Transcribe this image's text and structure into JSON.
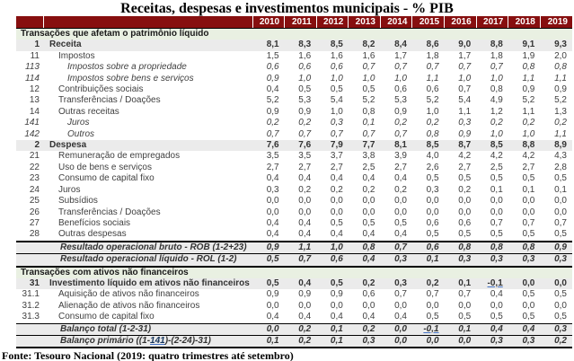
{
  "title": "Receitas, despesas e investimentos municipais - % PIB",
  "source_note": "Fonte: Tesouro Nacional (2019: quatro trimestres até setembro)",
  "colors": {
    "header_bg": "#870F0F",
    "header_text": "#FFFFFF",
    "section_bg": "#E9F0E2",
    "highlight_bg": "#EBEBEB",
    "link_blue": "#4472C4",
    "body_text": "#404040"
  },
  "chart_data": {
    "type": "table",
    "title": "Receitas, despesas e investimentos municipais - % PIB",
    "unit": "% PIB",
    "columns": [
      "2010",
      "2011",
      "2012",
      "2013",
      "2014",
      "2015",
      "2016",
      "2017",
      "2018",
      "2019"
    ],
    "rows": [
      {
        "type": "section",
        "label": "Transações que afetam o patrimônio líquido"
      },
      {
        "type": "data",
        "code": "1",
        "label": "Receita",
        "level": 1,
        "highlight": true,
        "values": [
          "8,1",
          "8,3",
          "8,5",
          "8,2",
          "8,4",
          "8,6",
          "9,0",
          "8,8",
          "9,1",
          "9,3"
        ]
      },
      {
        "type": "data",
        "code": "11",
        "label": "Impostos",
        "level": 2,
        "values": [
          "1,5",
          "1,6",
          "1,6",
          "1,6",
          "1,7",
          "1,8",
          "1,7",
          "1,8",
          "1,9",
          "2,0"
        ]
      },
      {
        "type": "data",
        "code": "113",
        "label": "Impostos sobre a propriedade",
        "level": 3,
        "italic": true,
        "values": [
          "0,6",
          "0,6",
          "0,6",
          "0,7",
          "0,7",
          "0,7",
          "0,7",
          "0,7",
          "0,8",
          "0,8"
        ]
      },
      {
        "type": "data",
        "code": "114",
        "label": "Impostos sobre bens e serviços",
        "level": 3,
        "italic": true,
        "values": [
          "0,9",
          "1,0",
          "1,0",
          "1,0",
          "1,0",
          "1,1",
          "1,0",
          "1,0",
          "1,1",
          "1,1"
        ]
      },
      {
        "type": "data",
        "code": "12",
        "label": "Contribuições sociais",
        "level": 2,
        "values": [
          "0,4",
          "0,5",
          "0,5",
          "0,5",
          "0,6",
          "0,6",
          "0,7",
          "0,8",
          "0,9",
          "0,9"
        ]
      },
      {
        "type": "data",
        "code": "13",
        "label": "Transferências / Doações",
        "level": 2,
        "values": [
          "5,2",
          "5,3",
          "5,4",
          "5,2",
          "5,3",
          "5,2",
          "5,4",
          "4,9",
          "5,2",
          "5,2"
        ]
      },
      {
        "type": "data",
        "code": "14",
        "label": "Outras receitas",
        "level": 2,
        "values": [
          "0,9",
          "0,9",
          "1,0",
          "0,8",
          "0,9",
          "1,0",
          "1,1",
          "1,2",
          "1,1",
          "1,3"
        ]
      },
      {
        "type": "data",
        "code": "141",
        "label": "Juros",
        "level": 3,
        "italic": true,
        "values": [
          "0,2",
          "0,2",
          "0,3",
          "0,1",
          "0,2",
          "0,2",
          "0,3",
          "0,2",
          "0,2",
          "0,2"
        ]
      },
      {
        "type": "data",
        "code": "142",
        "label": "Outros",
        "level": 3,
        "italic": true,
        "values": [
          "0,7",
          "0,7",
          "0,7",
          "0,7",
          "0,7",
          "0,8",
          "0,9",
          "1,0",
          "1,0",
          "1,1"
        ]
      },
      {
        "type": "data",
        "code": "2",
        "label": "Despesa",
        "level": 1,
        "highlight": true,
        "values": [
          "7,6",
          "7,6",
          "7,9",
          "7,7",
          "8,1",
          "8,5",
          "8,7",
          "8,5",
          "8,8",
          "8,9"
        ]
      },
      {
        "type": "data",
        "code": "21",
        "label": "Remuneração de empregados",
        "level": 2,
        "values": [
          "3,5",
          "3,5",
          "3,7",
          "3,8",
          "3,9",
          "4,0",
          "4,2",
          "4,2",
          "4,2",
          "4,3"
        ]
      },
      {
        "type": "data",
        "code": "22",
        "label": "Uso de bens e serviços",
        "level": 2,
        "values": [
          "2,7",
          "2,7",
          "2,7",
          "2,5",
          "2,7",
          "2,6",
          "2,7",
          "2,5",
          "2,7",
          "2,8"
        ]
      },
      {
        "type": "data",
        "code": "23",
        "label": "Consumo de capital fixo",
        "level": 2,
        "values": [
          "0,4",
          "0,4",
          "0,4",
          "0,4",
          "0,4",
          "0,5",
          "0,5",
          "0,5",
          "0,5",
          "0,5"
        ]
      },
      {
        "type": "data",
        "code": "24",
        "label": "Juros",
        "level": 2,
        "values": [
          "0,3",
          "0,2",
          "0,2",
          "0,2",
          "0,2",
          "0,3",
          "0,2",
          "0,1",
          "0,1",
          "0,1"
        ]
      },
      {
        "type": "data",
        "code": "25",
        "label": "Subsídios",
        "level": 2,
        "values": [
          "0,0",
          "0,0",
          "0,0",
          "0,0",
          "0,0",
          "0,0",
          "0,0",
          "0,0",
          "0,0",
          "0,0"
        ]
      },
      {
        "type": "data",
        "code": "26",
        "label": "Transferências / Doações",
        "level": 2,
        "values": [
          "0,0",
          "0,0",
          "0,0",
          "0,0",
          "0,0",
          "0,0",
          "0,0",
          "0,0",
          "0,0",
          "0,0"
        ]
      },
      {
        "type": "data",
        "code": "27",
        "label": "Benefícios sociais",
        "level": 2,
        "values": [
          "0,4",
          "0,4",
          "0,5",
          "0,5",
          "0,5",
          "0,6",
          "0,6",
          "0,7",
          "0,7",
          "0,7"
        ]
      },
      {
        "type": "data",
        "code": "28",
        "label": "Outras despesas",
        "level": 2,
        "values": [
          "0,4",
          "0,4",
          "0,4",
          "0,4",
          "0,4",
          "0,5",
          "0,5",
          "0,5",
          "0,5",
          "0,5"
        ]
      },
      {
        "type": "result",
        "code": "",
        "label": "Resultado operacional bruto - ROB (1-2+23)",
        "highlight": true,
        "border_top": "thick",
        "border_bottom": "thin",
        "values": [
          "0,9",
          "1,1",
          "1,0",
          "0,8",
          "0,7",
          "0,6",
          "0,8",
          "0,8",
          "0,8",
          "0,9"
        ]
      },
      {
        "type": "result",
        "code": "",
        "label": "Resultado operacional líquido - ROL (1-2)",
        "highlight": true,
        "border_bottom": "thick",
        "values": [
          "0,5",
          "0,7",
          "0,6",
          "0,4",
          "0,3",
          "0,1",
          "0,3",
          "0,3",
          "0,3",
          "0,3"
        ]
      },
      {
        "type": "section",
        "label": "Transações com ativos não financeiros"
      },
      {
        "type": "data",
        "code": "31",
        "label": "Investimento líquido em ativos não financeiros",
        "level": 1,
        "highlight": true,
        "values": [
          "0,5",
          "0,4",
          "0,5",
          "0,2",
          "0,3",
          "0,2",
          "0,1",
          "-0,1",
          "0,0",
          "0,0"
        ]
      },
      {
        "type": "data",
        "code": "31.1",
        "label": "Aquisição de ativos não financeiros",
        "level": 2,
        "values": [
          "0,9",
          "0,9",
          "0,9",
          "0,6",
          "0,7",
          "0,7",
          "0,7",
          "0,4",
          "0,5",
          "0,5"
        ]
      },
      {
        "type": "data",
        "code": "31.2",
        "label": "Alienação de ativos não financeiros",
        "level": 2,
        "values": [
          "0,0",
          "0,0",
          "0,0",
          "0,0",
          "0,0",
          "0,0",
          "0,0",
          "0,0",
          "0,0",
          "0,0"
        ]
      },
      {
        "type": "data",
        "code": "31.3",
        "label": "Consumo de capital fixo",
        "level": 2,
        "values": [
          "0,4",
          "0,4",
          "0,4",
          "0,4",
          "0,4",
          "0,5",
          "0,5",
          "0,5",
          "0,5",
          "0,5"
        ]
      },
      {
        "type": "result",
        "code": "",
        "label": "Balanço total (1-2-31)",
        "highlight": true,
        "border_top": "thin",
        "border_bottom": "thin",
        "values": [
          "0,0",
          "0,2",
          "0,1",
          "0,2",
          "0,0",
          "-0,1",
          "0,1",
          "0,4",
          "0,4",
          "0,3"
        ]
      },
      {
        "type": "result",
        "code": "",
        "highlight": true,
        "border_bottom": "thick",
        "label_parts": {
          "pre": "Balanço primário ((1-",
          "link": "141",
          "post": ")-(2-24)-31)"
        },
        "values": [
          "0,1",
          "0,2",
          "0,1",
          "0,3",
          "0,0",
          "0,0",
          "0,0",
          "0,3",
          "0,3",
          "0,2"
        ]
      }
    ]
  }
}
